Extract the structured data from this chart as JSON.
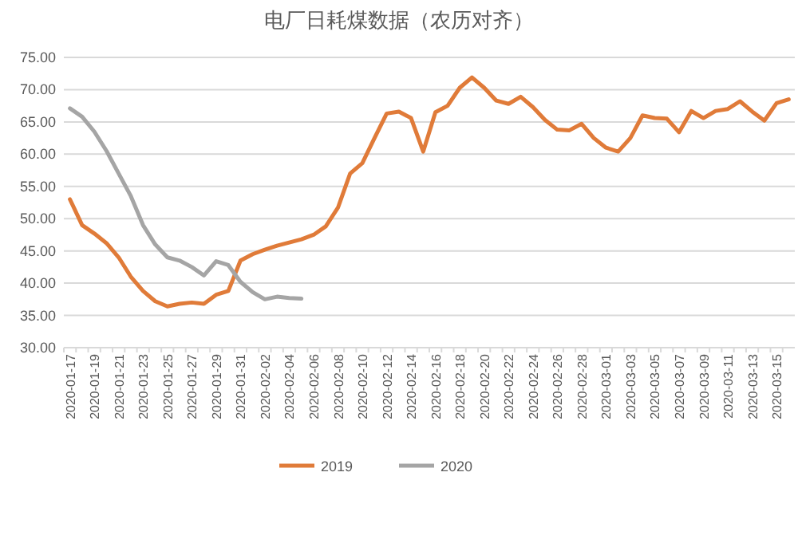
{
  "chart_data": {
    "type": "line",
    "title": "电厂日耗煤数据（农历对齐）",
    "categories": [
      "2020-01-17",
      null,
      "2020-01-19",
      null,
      "2020-01-21",
      null,
      "2020-01-23",
      null,
      "2020-01-25",
      null,
      "2020-01-27",
      null,
      "2020-01-29",
      null,
      "2020-01-31",
      null,
      "2020-02-02",
      null,
      "2020-02-04",
      null,
      "2020-02-06",
      null,
      "2020-02-08",
      null,
      "2020-02-10",
      null,
      "2020-02-12",
      null,
      "2020-02-14",
      null,
      "2020-02-16",
      null,
      "2020-02-18",
      null,
      "2020-02-20",
      null,
      "2020-02-22",
      null,
      "2020-02-24",
      null,
      "2020-02-26",
      null,
      "2020-02-28",
      null,
      "2020-03-01",
      null,
      "2020-03-03",
      null,
      "2020-03-05",
      null,
      "2020-03-07",
      null,
      "2020-03-09",
      null,
      "2020-03-11",
      null,
      "2020-03-13",
      null,
      "2020-03-15",
      null
    ],
    "series": [
      {
        "name": "2019",
        "color": "#e07b39",
        "values": [
          53.0,
          49.0,
          47.7,
          46.2,
          44.0,
          41.0,
          38.8,
          37.2,
          36.4,
          36.8,
          37.0,
          36.8,
          38.2,
          38.8,
          43.5,
          44.5,
          45.2,
          45.8,
          46.3,
          46.8,
          47.5,
          48.8,
          51.7,
          57.0,
          58.6,
          62.5,
          66.3,
          66.6,
          65.6,
          60.4,
          66.5,
          67.5,
          70.3,
          71.9,
          70.3,
          68.3,
          67.8,
          68.9,
          67.3,
          65.3,
          63.8,
          63.7,
          64.7,
          62.5,
          61.0,
          60.4,
          62.5,
          66.0,
          65.6,
          65.5,
          63.4,
          66.7,
          65.6,
          66.7,
          67.0,
          68.2,
          66.6,
          65.2,
          67.9,
          68.5
        ]
      },
      {
        "name": "2020",
        "color": "#a5a5a5",
        "values": [
          67.1,
          65.8,
          63.5,
          60.5,
          57.0,
          53.5,
          49.0,
          46.0,
          44.0,
          43.5,
          42.5,
          41.2,
          43.4,
          42.8,
          40.2,
          38.6,
          37.5,
          37.9,
          37.7,
          37.6,
          null,
          null,
          null,
          null,
          null,
          null,
          null,
          null,
          null,
          null,
          null,
          null,
          null,
          null,
          null,
          null,
          null,
          null,
          null,
          null,
          null,
          null,
          null,
          null,
          null,
          null,
          null,
          null,
          null,
          null,
          null,
          null,
          null,
          null,
          null,
          null,
          null,
          null,
          null,
          null
        ]
      }
    ],
    "ylim": [
      30,
      75
    ],
    "yticks": [
      {
        "value": 30,
        "label": "30.00"
      },
      {
        "value": 35,
        "label": "35.00"
      },
      {
        "value": 40,
        "label": "40.00"
      },
      {
        "value": 45,
        "label": "45.00"
      },
      {
        "value": 50,
        "label": "50.00"
      },
      {
        "value": 55,
        "label": "55.00"
      },
      {
        "value": 60,
        "label": "60.00"
      },
      {
        "value": 65,
        "label": "65.00"
      },
      {
        "value": 70,
        "label": "70.00"
      },
      {
        "value": 75,
        "label": "75.00"
      }
    ],
    "grid": "y",
    "legend": "bottom",
    "marker": "none",
    "line_style": "solid"
  }
}
